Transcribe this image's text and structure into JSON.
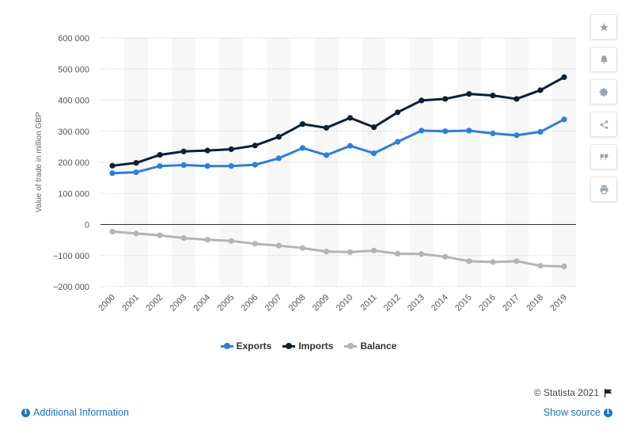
{
  "chart_data": {
    "type": "line",
    "title": "",
    "xlabel": "",
    "ylabel": "Value of trade in million GBP",
    "categories": [
      "2000",
      "2001",
      "2002",
      "2003",
      "2004",
      "2005",
      "2006",
      "2007",
      "2008",
      "2009",
      "2010",
      "2011",
      "2012",
      "2013",
      "2014",
      "2015",
      "2016",
      "2017",
      "2018",
      "2019"
    ],
    "series": [
      {
        "name": "Exports",
        "color": "#2f7ed8",
        "values": [
          165000,
          168000,
          188000,
          191000,
          188000,
          188000,
          192000,
          213000,
          246000,
          223000,
          253000,
          229000,
          266000,
          302000,
          300000,
          302000,
          293000,
          287000,
          298000,
          338000
        ]
      },
      {
        "name": "Imports",
        "color": "#0d2034",
        "values": [
          189000,
          198000,
          224000,
          235000,
          238000,
          242000,
          254000,
          282000,
          323000,
          311000,
          343000,
          313000,
          361000,
          399000,
          404000,
          420000,
          415000,
          404000,
          432000,
          474000
        ]
      },
      {
        "name": "Balance",
        "color": "#b4b4b4",
        "values": [
          -23000,
          -29000,
          -35000,
          -44000,
          -49000,
          -53000,
          -62000,
          -68000,
          -76000,
          -87000,
          -89000,
          -84000,
          -94000,
          -95000,
          -104000,
          -118000,
          -121000,
          -118000,
          -133000,
          -135000
        ]
      }
    ],
    "ylim": [
      -200000,
      600000
    ],
    "yticks": [
      -200000,
      -100000,
      0,
      100000,
      200000,
      300000,
      400000,
      500000,
      600000
    ],
    "ytick_labels": [
      "−200 000",
      "−100 000",
      "0",
      "100 000",
      "200 000",
      "300 000",
      "400 000",
      "500 000",
      "600 000"
    ],
    "grid": true,
    "legend_position": "bottom-center"
  },
  "toolbar": {
    "icons": [
      "star-icon",
      "bell-icon",
      "gear-icon",
      "share-icon",
      "quote-icon",
      "print-icon"
    ]
  },
  "footer": {
    "credit": "© Statista 2021",
    "additional_info": "Additional Information",
    "show_source": "Show source"
  }
}
